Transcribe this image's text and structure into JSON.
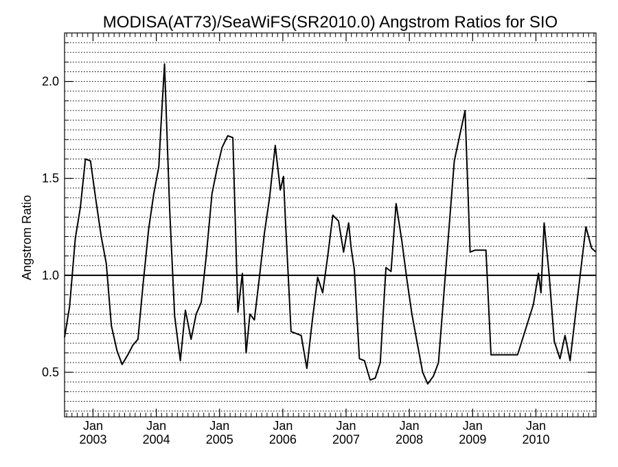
{
  "chart_data": {
    "type": "line",
    "title": "MODISA(AT73)/SeaWiFS(SR2010.0)  Angstrom Ratios for SIO",
    "xlabel": "",
    "ylabel": "Angstrom Ratio",
    "xlim": [
      2002.55,
      2010.95
    ],
    "ylim": [
      0.27,
      2.25
    ],
    "y_ticks": [
      {
        "value": 0.5,
        "label": "0.5"
      },
      {
        "value": 1.0,
        "label": "1.0"
      },
      {
        "value": 1.5,
        "label": "1.5"
      },
      {
        "value": 2.0,
        "label": "2.0"
      }
    ],
    "x_ticks": [
      {
        "value": 2003,
        "month": "Jan",
        "year": "2003"
      },
      {
        "value": 2004,
        "month": "Jan",
        "year": "2004"
      },
      {
        "value": 2005,
        "month": "Jan",
        "year": "2005"
      },
      {
        "value": 2006,
        "month": "Jan",
        "year": "2006"
      },
      {
        "value": 2007,
        "month": "Jan",
        "year": "2007"
      },
      {
        "value": 2008,
        "month": "Jan",
        "year": "2008"
      },
      {
        "value": 2009,
        "month": "Jan",
        "year": "2009"
      },
      {
        "value": 2010,
        "month": "Jan",
        "year": "2010"
      }
    ],
    "minor_ticks_per_year": 12,
    "grid": "horizontal dotted",
    "reference_line": 1.0,
    "series": [
      {
        "x": [
          2002.55,
          2002.63,
          2002.72,
          2002.8,
          2002.88,
          2002.96,
          2003.04,
          2003.13,
          2003.21,
          2003.29,
          2003.38,
          2003.46,
          2003.55,
          2003.63,
          2003.71,
          2003.79,
          2003.88,
          2003.96,
          2004.04,
          2004.07,
          2004.13,
          2004.21,
          2004.29,
          2004.38,
          2004.46,
          2004.55,
          2004.63,
          2004.71,
          2004.79,
          2004.88,
          2004.96,
          2005.04,
          2005.13,
          2005.21,
          2005.29,
          2005.36,
          2005.42,
          2005.48,
          2005.55,
          2005.63,
          2005.71,
          2005.79,
          2005.88,
          2005.96,
          2006.01,
          2006.04,
          2006.13,
          2006.29,
          2006.38,
          2006.46,
          2006.55,
          2006.63,
          2006.71,
          2006.79,
          2006.88,
          2006.96,
          2007.04,
          2007.08,
          2007.13,
          2007.21,
          2007.29,
          2007.38,
          2007.46,
          2007.54,
          2007.63,
          2007.71,
          2007.79,
          2007.88,
          2007.96,
          2008.04,
          2008.13,
          2008.21,
          2008.29,
          2008.38,
          2008.46,
          2008.71,
          2008.88,
          2008.96,
          2009.04,
          2009.21,
          2009.29,
          2009.63,
          2009.71,
          2009.96,
          2010.04,
          2010.08,
          2010.13,
          2010.21,
          2010.29,
          2010.38,
          2010.46,
          2010.54,
          2010.63,
          2010.71,
          2010.79,
          2010.88,
          2010.95
        ],
        "y": [
          0.68,
          0.84,
          1.19,
          1.35,
          1.6,
          1.59,
          1.4,
          1.2,
          1.06,
          0.74,
          0.61,
          0.54,
          0.59,
          0.64,
          0.67,
          0.95,
          1.24,
          1.42,
          1.56,
          1.75,
          2.09,
          1.35,
          0.79,
          0.56,
          0.82,
          0.67,
          0.8,
          0.86,
          1.1,
          1.42,
          1.55,
          1.66,
          1.72,
          1.71,
          0.81,
          1.01,
          0.6,
          0.8,
          0.77,
          0.99,
          1.22,
          1.4,
          1.67,
          1.44,
          1.51,
          1.29,
          0.71,
          0.69,
          0.52,
          0.75,
          0.99,
          0.91,
          1.1,
          1.31,
          1.28,
          1.12,
          1.27,
          1.14,
          1.03,
          0.57,
          0.56,
          0.46,
          0.47,
          0.55,
          1.04,
          1.02,
          1.37,
          1.18,
          0.98,
          0.8,
          0.64,
          0.5,
          0.44,
          0.48,
          0.55,
          1.59,
          1.85,
          1.12,
          1.13,
          1.13,
          0.59,
          0.59,
          0.59,
          0.85,
          1.01,
          0.91,
          1.27,
          1.0,
          0.66,
          0.57,
          0.69,
          0.56,
          0.81,
          1.03,
          1.25,
          1.14,
          1.12
        ]
      }
    ]
  }
}
